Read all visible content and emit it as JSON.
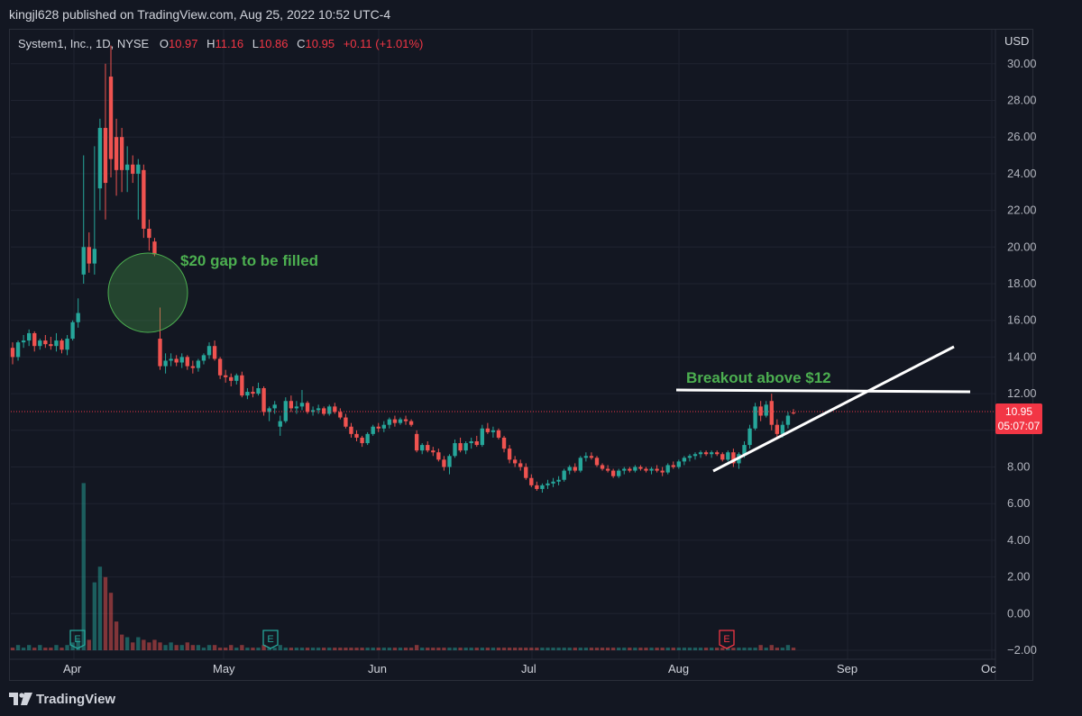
{
  "header": {
    "publisher": "kingjl628 published on TradingView.com, Aug 25, 2022 10:52 UTC-4"
  },
  "legend": {
    "symbol": "System1, Inc., 1D, NYSE",
    "open_label": "O",
    "open": "10.97",
    "high_label": "H",
    "high": "11.16",
    "low_label": "L",
    "low": "10.86",
    "close_label": "C",
    "close": "10.95",
    "change": "+0.11 (+1.01%)"
  },
  "axis": {
    "currency": "USD",
    "y_labels": [
      "30.00",
      "28.00",
      "26.00",
      "24.00",
      "22.00",
      "20.00",
      "18.00",
      "16.00",
      "14.00",
      "12.00",
      "10.00",
      "8.00",
      "6.00",
      "4.00",
      "2.00",
      "0.00",
      "−2.00"
    ],
    "x_labels": [
      "Apr",
      "May",
      "Jun",
      "Jul",
      "Aug",
      "Sep",
      "Oc"
    ]
  },
  "price_badge": {
    "price": "10.95",
    "countdown": "05:07:07"
  },
  "annotations": {
    "gap_text": "$20 gap to be filled",
    "breakout_text": "Breakout above $12"
  },
  "events": [
    "E",
    "E",
    "E"
  ],
  "footer": {
    "brand": "TradingView"
  },
  "colors": {
    "up": "#26a69a",
    "down": "#ef5350",
    "annotation": "#4caf50",
    "background": "#131722"
  },
  "chart_data": {
    "type": "candlestick",
    "ylim": [
      -2,
      31
    ],
    "candles": [
      [
        14.5,
        14.8,
        13.6,
        14.0
      ],
      [
        14.0,
        14.9,
        13.8,
        14.8
      ],
      [
        14.8,
        15.2,
        14.5,
        14.9
      ],
      [
        14.9,
        15.5,
        14.6,
        15.3
      ],
      [
        15.3,
        15.4,
        14.3,
        14.6
      ],
      [
        14.6,
        15.0,
        14.4,
        14.9
      ],
      [
        14.9,
        15.2,
        14.5,
        14.7
      ],
      [
        14.7,
        15.1,
        14.4,
        14.6
      ],
      [
        14.6,
        15.3,
        14.3,
        14.9
      ],
      [
        14.9,
        15.0,
        14.2,
        14.4
      ],
      [
        14.4,
        15.2,
        14.1,
        15.0
      ],
      [
        15.0,
        16.0,
        14.9,
        15.9
      ],
      [
        15.9,
        17.2,
        15.6,
        16.4
      ],
      [
        18.5,
        25.0,
        18.0,
        20.0
      ],
      [
        20.0,
        20.8,
        18.6,
        19.1
      ],
      [
        19.1,
        25.5,
        18.5,
        19.9
      ],
      [
        23.2,
        27.0,
        22.0,
        26.5
      ],
      [
        26.5,
        30.0,
        21.5,
        23.5
      ],
      [
        29.3,
        31.0,
        23.8,
        24.8
      ],
      [
        26.0,
        27.0,
        22.8,
        24.2
      ],
      [
        26.0,
        26.5,
        23.0,
        24.2
      ],
      [
        24.2,
        25.5,
        23.0,
        24.5
      ],
      [
        24.5,
        25.0,
        23.5,
        24.0
      ],
      [
        24.0,
        24.8,
        21.5,
        24.5
      ],
      [
        24.2,
        24.5,
        20.5,
        21.0
      ],
      [
        21.0,
        21.5,
        19.8,
        20.5
      ],
      [
        20.3,
        20.5,
        19.5,
        19.6
      ],
      [
        15.0,
        16.7,
        13.3,
        13.5
      ],
      [
        13.5,
        14.2,
        13.1,
        13.8
      ],
      [
        13.8,
        14.2,
        13.5,
        13.9
      ],
      [
        13.9,
        14.1,
        13.5,
        13.7
      ],
      [
        13.7,
        14.2,
        13.4,
        14.0
      ],
      [
        14.0,
        14.1,
        13.3,
        13.5
      ],
      [
        13.5,
        13.8,
        13.1,
        13.4
      ],
      [
        13.4,
        13.9,
        13.2,
        13.8
      ],
      [
        13.8,
        14.2,
        13.6,
        14.1
      ],
      [
        14.1,
        14.8,
        13.9,
        14.6
      ],
      [
        14.6,
        14.9,
        13.8,
        13.9
      ],
      [
        13.9,
        14.0,
        12.8,
        13.0
      ],
      [
        13.0,
        13.3,
        12.6,
        12.9
      ],
      [
        12.9,
        13.1,
        12.4,
        12.7
      ],
      [
        12.7,
        13.1,
        12.5,
        13.0
      ],
      [
        13.0,
        13.2,
        11.8,
        11.9
      ],
      [
        11.9,
        12.3,
        11.7,
        12.1
      ],
      [
        12.1,
        12.4,
        11.8,
        12.0
      ],
      [
        12.0,
        12.6,
        11.9,
        12.3
      ],
      [
        12.3,
        12.4,
        10.8,
        11.0
      ],
      [
        11.0,
        11.3,
        10.5,
        11.2
      ],
      [
        11.2,
        11.6,
        10.9,
        11.4
      ],
      [
        10.2,
        10.8,
        9.7,
        10.5
      ],
      [
        10.5,
        11.8,
        10.4,
        11.6
      ],
      [
        11.6,
        11.9,
        11.0,
        11.2
      ],
      [
        11.2,
        11.6,
        10.9,
        11.3
      ],
      [
        11.3,
        12.2,
        11.1,
        11.5
      ],
      [
        11.5,
        11.6,
        10.9,
        11.0
      ],
      [
        11.0,
        11.3,
        10.8,
        11.1
      ],
      [
        11.1,
        11.4,
        10.9,
        11.2
      ],
      [
        11.2,
        11.3,
        10.8,
        10.9
      ],
      [
        10.9,
        11.4,
        10.8,
        11.3
      ],
      [
        11.3,
        11.5,
        10.9,
        11.0
      ],
      [
        11.0,
        11.2,
        10.6,
        10.7
      ],
      [
        10.7,
        10.9,
        10.1,
        10.2
      ],
      [
        10.2,
        10.4,
        9.6,
        9.8
      ],
      [
        9.8,
        10.0,
        9.4,
        9.6
      ],
      [
        9.6,
        9.7,
        9.1,
        9.3
      ],
      [
        9.3,
        9.9,
        9.2,
        9.8
      ],
      [
        9.8,
        10.3,
        9.7,
        10.2
      ],
      [
        10.2,
        10.4,
        9.9,
        10.1
      ],
      [
        10.1,
        10.5,
        9.9,
        10.3
      ],
      [
        10.3,
        10.7,
        10.1,
        10.6
      ],
      [
        10.6,
        10.8,
        10.2,
        10.4
      ],
      [
        10.4,
        10.7,
        10.3,
        10.6
      ],
      [
        10.6,
        10.8,
        10.3,
        10.5
      ],
      [
        10.5,
        10.6,
        10.2,
        10.3
      ],
      [
        9.8,
        10.0,
        8.8,
        8.9
      ],
      [
        8.9,
        9.3,
        8.7,
        9.2
      ],
      [
        9.2,
        9.4,
        8.8,
        8.9
      ],
      [
        8.9,
        9.1,
        8.6,
        8.8
      ],
      [
        8.8,
        9.0,
        8.3,
        8.4
      ],
      [
        8.4,
        8.6,
        7.8,
        8.0
      ],
      [
        8.0,
        8.7,
        7.6,
        8.6
      ],
      [
        8.6,
        9.5,
        8.5,
        9.3
      ],
      [
        9.3,
        9.6,
        8.8,
        8.9
      ],
      [
        8.9,
        9.4,
        8.7,
        9.3
      ],
      [
        9.3,
        9.6,
        9.0,
        9.4
      ],
      [
        9.4,
        9.7,
        9.1,
        9.2
      ],
      [
        9.2,
        10.3,
        9.1,
        10.1
      ],
      [
        10.1,
        10.4,
        9.8,
        9.9
      ],
      [
        9.9,
        10.2,
        9.6,
        10.0
      ],
      [
        10.0,
        10.1,
        9.5,
        9.6
      ],
      [
        9.6,
        9.7,
        8.8,
        9.0
      ],
      [
        9.0,
        9.2,
        8.2,
        8.4
      ],
      [
        8.4,
        8.6,
        8.0,
        8.2
      ],
      [
        8.2,
        8.4,
        7.8,
        8.0
      ],
      [
        8.0,
        8.2,
        7.3,
        7.4
      ],
      [
        7.4,
        7.6,
        6.9,
        7.0
      ],
      [
        7.0,
        7.2,
        6.7,
        6.8
      ],
      [
        6.8,
        7.1,
        6.6,
        7.0
      ],
      [
        7.0,
        7.3,
        6.8,
        7.1
      ],
      [
        7.1,
        7.4,
        6.9,
        7.2
      ],
      [
        7.2,
        7.5,
        7.0,
        7.3
      ],
      [
        7.3,
        7.9,
        7.2,
        7.8
      ],
      [
        7.8,
        8.1,
        7.6,
        8.0
      ],
      [
        8.0,
        8.2,
        7.7,
        7.8
      ],
      [
        7.8,
        8.6,
        7.7,
        8.5
      ],
      [
        8.5,
        8.8,
        8.3,
        8.6
      ],
      [
        8.6,
        8.8,
        8.4,
        8.5
      ],
      [
        8.5,
        8.6,
        8.0,
        8.1
      ],
      [
        8.1,
        8.2,
        7.8,
        7.9
      ],
      [
        7.9,
        8.1,
        7.7,
        7.8
      ],
      [
        7.8,
        7.9,
        7.4,
        7.5
      ],
      [
        7.5,
        7.9,
        7.4,
        7.8
      ],
      [
        7.8,
        8.0,
        7.6,
        7.9
      ],
      [
        7.9,
        8.0,
        7.7,
        7.8
      ],
      [
        7.8,
        8.1,
        7.7,
        8.0
      ],
      [
        8.0,
        8.1,
        7.8,
        7.9
      ],
      [
        7.9,
        8.0,
        7.7,
        7.8
      ],
      [
        7.8,
        8.0,
        7.6,
        7.9
      ],
      [
        7.9,
        8.1,
        7.7,
        7.8
      ],
      [
        7.8,
        8.0,
        7.5,
        7.7
      ],
      [
        7.7,
        8.2,
        7.6,
        8.1
      ],
      [
        8.1,
        8.3,
        7.9,
        8.0
      ],
      [
        8.0,
        8.4,
        7.9,
        8.3
      ],
      [
        8.3,
        8.6,
        8.1,
        8.5
      ],
      [
        8.5,
        8.7,
        8.3,
        8.6
      ],
      [
        8.6,
        8.8,
        8.4,
        8.7
      ],
      [
        8.7,
        8.9,
        8.5,
        8.8
      ],
      [
        8.8,
        8.9,
        8.6,
        8.7
      ],
      [
        8.7,
        8.9,
        8.5,
        8.8
      ],
      [
        8.8,
        8.9,
        8.6,
        8.7
      ],
      [
        8.7,
        8.8,
        8.3,
        8.4
      ],
      [
        8.4,
        8.9,
        8.3,
        8.8
      ],
      [
        8.8,
        9.0,
        8.0,
        8.2
      ],
      [
        8.2,
        8.8,
        7.9,
        8.7
      ],
      [
        8.7,
        9.4,
        8.5,
        9.2
      ],
      [
        9.2,
        10.3,
        9.0,
        10.1
      ],
      [
        10.1,
        11.5,
        10.0,
        11.3
      ],
      [
        11.3,
        11.6,
        10.5,
        10.8
      ],
      [
        10.8,
        11.6,
        10.7,
        11.4
      ],
      [
        11.6,
        12.0,
        10.0,
        10.3
      ],
      [
        10.3,
        10.6,
        9.6,
        9.8
      ],
      [
        9.8,
        10.5,
        9.6,
        10.3
      ],
      [
        10.3,
        11.0,
        10.1,
        10.8
      ],
      [
        10.97,
        11.16,
        10.86,
        10.95
      ]
    ],
    "volume": [
      0.1,
      0.2,
      0.1,
      0.2,
      0.1,
      0.2,
      0.1,
      0.1,
      0.2,
      0.1,
      0.2,
      0.3,
      0.4,
      6.4,
      0.4,
      2.6,
      3.2,
      2.8,
      2.2,
      1.1,
      0.6,
      0.5,
      0.3,
      0.5,
      0.4,
      0.3,
      0.4,
      0.3,
      0.2,
      0.3,
      0.2,
      0.2,
      0.3,
      0.2,
      0.2,
      0.1,
      0.2,
      0.2,
      0.1,
      0.1,
      0.2,
      0.1,
      0.2,
      0.1,
      0.1,
      0.1,
      0.2,
      0.1,
      0.1,
      0.2,
      0.1,
      0.1,
      0.1,
      0.1,
      0.1,
      0.1,
      0.1,
      0.1,
      0.1,
      0.1,
      0.1,
      0.1,
      0.1,
      0.1,
      0.1,
      0.1,
      0.1,
      0.1,
      0.1,
      0.1,
      0.1,
      0.1,
      0.1,
      0.1,
      0.2,
      0.1,
      0.1,
      0.1,
      0.1,
      0.1,
      0.1,
      0.1,
      0.1,
      0.1,
      0.1,
      0.1,
      0.1,
      0.1,
      0.1,
      0.1,
      0.1,
      0.1,
      0.1,
      0.1,
      0.1,
      0.1,
      0.1,
      0.1,
      0.1,
      0.1,
      0.1,
      0.1,
      0.1,
      0.1,
      0.1,
      0.1,
      0.1,
      0.1,
      0.1,
      0.1,
      0.1,
      0.1,
      0.1,
      0.1,
      0.1,
      0.1,
      0.1,
      0.1,
      0.1,
      0.1,
      0.1,
      0.1,
      0.1,
      0.1,
      0.1,
      0.1,
      0.1,
      0.1,
      0.1,
      0.1,
      0.1,
      0.1,
      0.1,
      0.1,
      0.1,
      0.1,
      0.1,
      0.2,
      0.1,
      0.2,
      0.1,
      0.1,
      0.2,
      0.1
    ]
  }
}
